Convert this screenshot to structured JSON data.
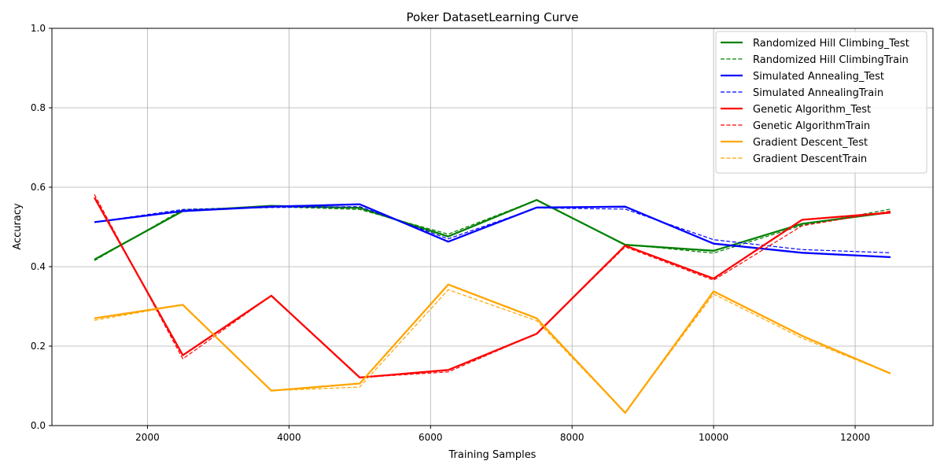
{
  "chart_data": {
    "type": "line",
    "title": "Poker DatasetLearning Curve",
    "xlabel": "Training Samples",
    "ylabel": "Accuracy",
    "xlim": [
      650,
      13100
    ],
    "ylim": [
      0,
      1.0
    ],
    "xticks": [
      2000,
      4000,
      6000,
      8000,
      10000,
      12000
    ],
    "yticks": [
      0.0,
      0.2,
      0.4,
      0.6,
      0.8,
      1.0
    ],
    "ytick_labels": [
      "0.0",
      "0.2",
      "0.4",
      "0.6",
      "0.8",
      "1.0"
    ],
    "grid": true,
    "legend_position": "top-right",
    "x": [
      1250,
      2500,
      3750,
      5000,
      6250,
      7500,
      8750,
      10000,
      11250,
      12500
    ],
    "series": [
      {
        "name": "Randomized Hill Climbing_Test",
        "color": "#008000",
        "style": "solid",
        "values": [
          0.418,
          0.54,
          0.553,
          0.548,
          0.476,
          0.568,
          0.455,
          0.44,
          0.508,
          0.537
        ]
      },
      {
        "name": "Randomized Hill ClimbingTrain",
        "color": "#008000",
        "style": "dashed",
        "values": [
          0.415,
          0.544,
          0.551,
          0.544,
          0.482,
          0.568,
          0.456,
          0.434,
          0.504,
          0.545
        ]
      },
      {
        "name": "Simulated Annealing_Test",
        "color": "#0000ff",
        "style": "solid",
        "values": [
          0.512,
          0.54,
          0.551,
          0.557,
          0.463,
          0.549,
          0.551,
          0.458,
          0.435,
          0.424
        ]
      },
      {
        "name": "Simulated AnnealingTrain",
        "color": "#0000ff",
        "style": "dashed",
        "values": [
          0.512,
          0.544,
          0.549,
          0.551,
          0.47,
          0.548,
          0.545,
          0.468,
          0.443,
          0.435
        ]
      },
      {
        "name": "Genetic Algorithm_Test",
        "color": "#ff0000",
        "style": "solid",
        "values": [
          0.574,
          0.177,
          0.327,
          0.121,
          0.14,
          0.231,
          0.453,
          0.37,
          0.518,
          0.536
        ]
      },
      {
        "name": "Genetic AlgorithmTrain",
        "color": "#ff0000",
        "style": "dashed",
        "values": [
          0.582,
          0.168,
          0.327,
          0.121,
          0.135,
          0.231,
          0.45,
          0.366,
          0.503,
          0.54
        ]
      },
      {
        "name": "Gradient Descent_Test",
        "color": "#ffa500",
        "style": "solid",
        "values": [
          0.27,
          0.304,
          0.088,
          0.106,
          0.355,
          0.27,
          0.032,
          0.338,
          0.226,
          0.131
        ]
      },
      {
        "name": "Gradient DescentTrain",
        "color": "#ffa500",
        "style": "dashed",
        "values": [
          0.265,
          0.304,
          0.088,
          0.097,
          0.342,
          0.264,
          0.032,
          0.331,
          0.22,
          0.131
        ]
      }
    ]
  }
}
